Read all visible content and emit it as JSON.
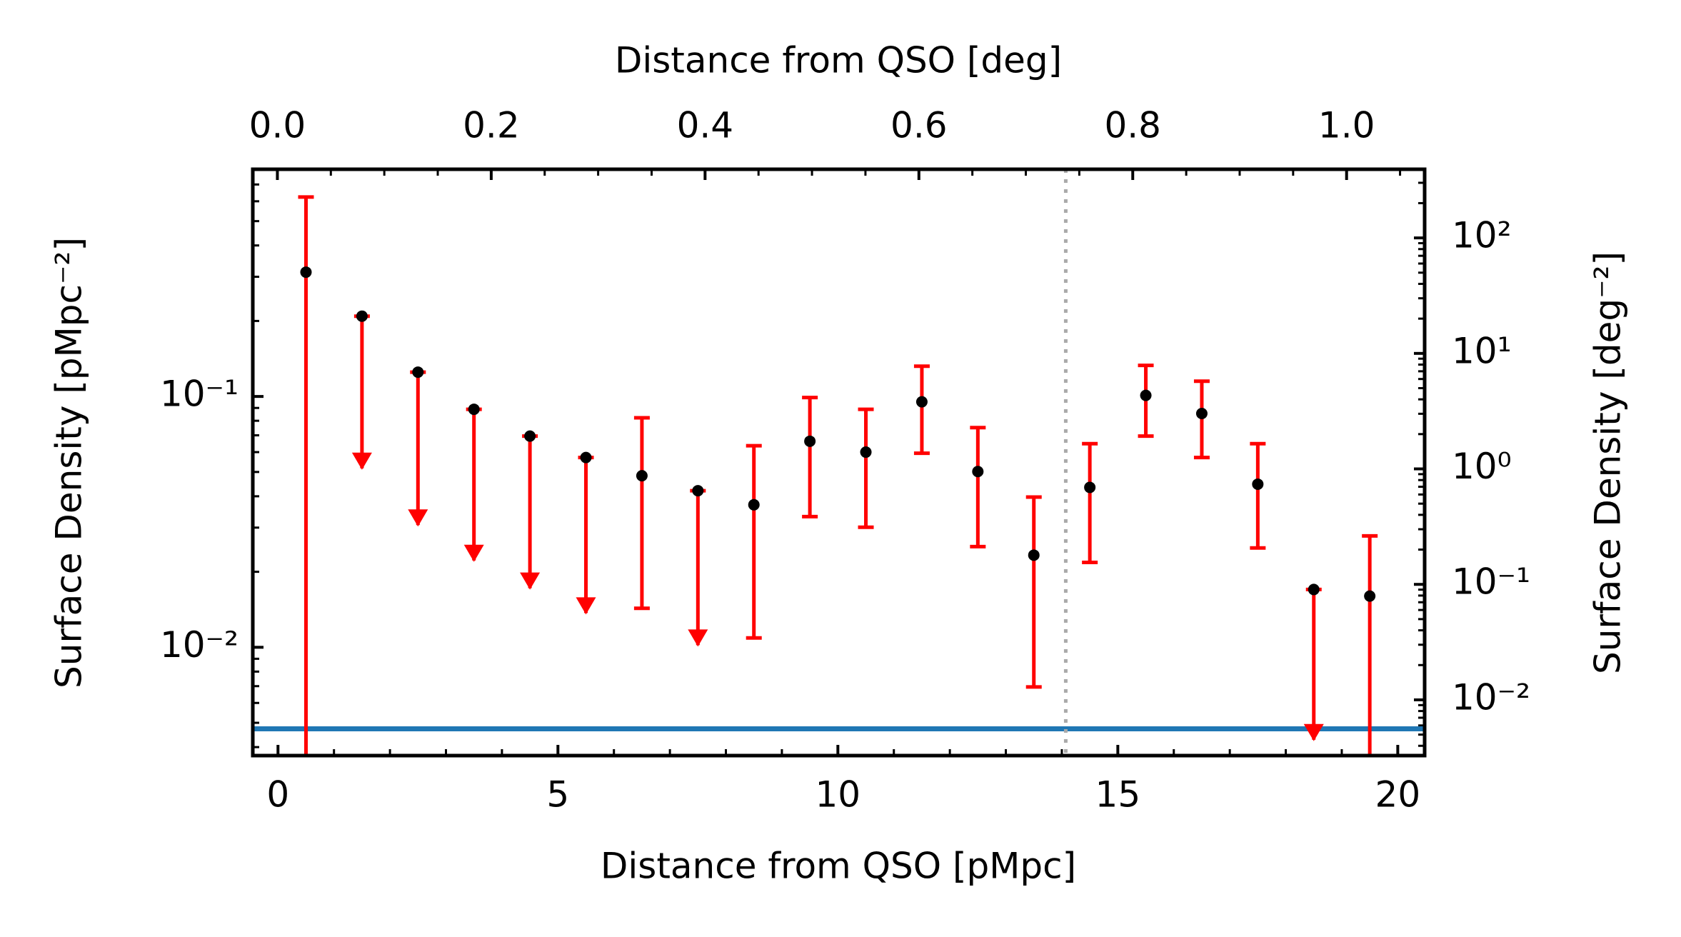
{
  "chart_data": {
    "type": "errorbar",
    "xlabel": "Distance from QSO [pMpc]",
    "x2label": "Distance from QSO [deg]",
    "ylabel": "Surface Density [pMpc⁻²]",
    "y2label": "Surface Density [deg⁻²]",
    "x": [
      0.5,
      1.5,
      2.5,
      3.5,
      4.5,
      5.5,
      6.5,
      7.5,
      8.5,
      9.5,
      10.5,
      11.5,
      12.5,
      13.5,
      14.5,
      15.5,
      16.5,
      17.5,
      18.5,
      19.5
    ],
    "values": [
      0.313,
      0.209,
      0.125,
      0.0889,
      0.0695,
      0.0571,
      0.0483,
      0.0421,
      0.037,
      0.0663,
      0.06,
      0.0952,
      0.0502,
      0.0233,
      0.0434,
      0.101,
      0.0855,
      0.0447,
      0.017,
      0.016
    ],
    "upper": [
      0.624,
      0.209,
      0.125,
      0.0889,
      0.0695,
      0.0571,
      0.0822,
      0.0421,
      0.0636,
      0.099,
      0.0889,
      0.132,
      0.0751,
      0.0397,
      0.0648,
      0.133,
      0.115,
      0.0648,
      0.017,
      0.0278
    ],
    "lower": [
      0,
      0.0517,
      0.0307,
      0.0222,
      0.0172,
      0.0137,
      0.0143,
      0.0102,
      0.0109,
      0.0332,
      0.0301,
      0.0594,
      0.0252,
      0.00695,
      0.0218,
      0.0695,
      0.0571,
      0.0249,
      0.00428,
      0
    ],
    "upper_limit": [
      false,
      true,
      true,
      true,
      true,
      true,
      false,
      true,
      false,
      false,
      false,
      false,
      false,
      false,
      false,
      false,
      false,
      false,
      true,
      false
    ],
    "color": "#000000",
    "errcolor": "#ff0000",
    "xlim": [
      -0.45,
      20.48
    ],
    "xticks": [
      0,
      5,
      10,
      15,
      20
    ],
    "x2lim": [
      -0.023,
      1.073
    ],
    "x2ticks": [
      {
        "value": 0,
        "label": "0.0"
      },
      0.2,
      0.4,
      0.6,
      0.8,
      {
        "value": 1,
        "label": "1.0"
      }
    ],
    "ylim": [
      0.0037,
      0.805
    ],
    "yscale": "log",
    "yticks": [
      {
        "value": 0.1,
        "label": "10⁻¹"
      },
      {
        "value": 0.01,
        "label": "10⁻²"
      }
    ],
    "y2lim": [
      0.00329,
      393
    ],
    "y2ticks": [
      {
        "value": 100,
        "label": "10²"
      },
      {
        "value": 10,
        "label": "10¹"
      },
      {
        "value": 1,
        "label": "10⁰"
      },
      {
        "value": 0.1,
        "label": "10⁻¹"
      },
      {
        "value": 0.01,
        "label": "10⁻²"
      }
    ],
    "hline": {
      "value": 0.00473,
      "color": "#1f77b4"
    },
    "vline": {
      "value": 14.07,
      "color": "#aaaaaa"
    }
  }
}
